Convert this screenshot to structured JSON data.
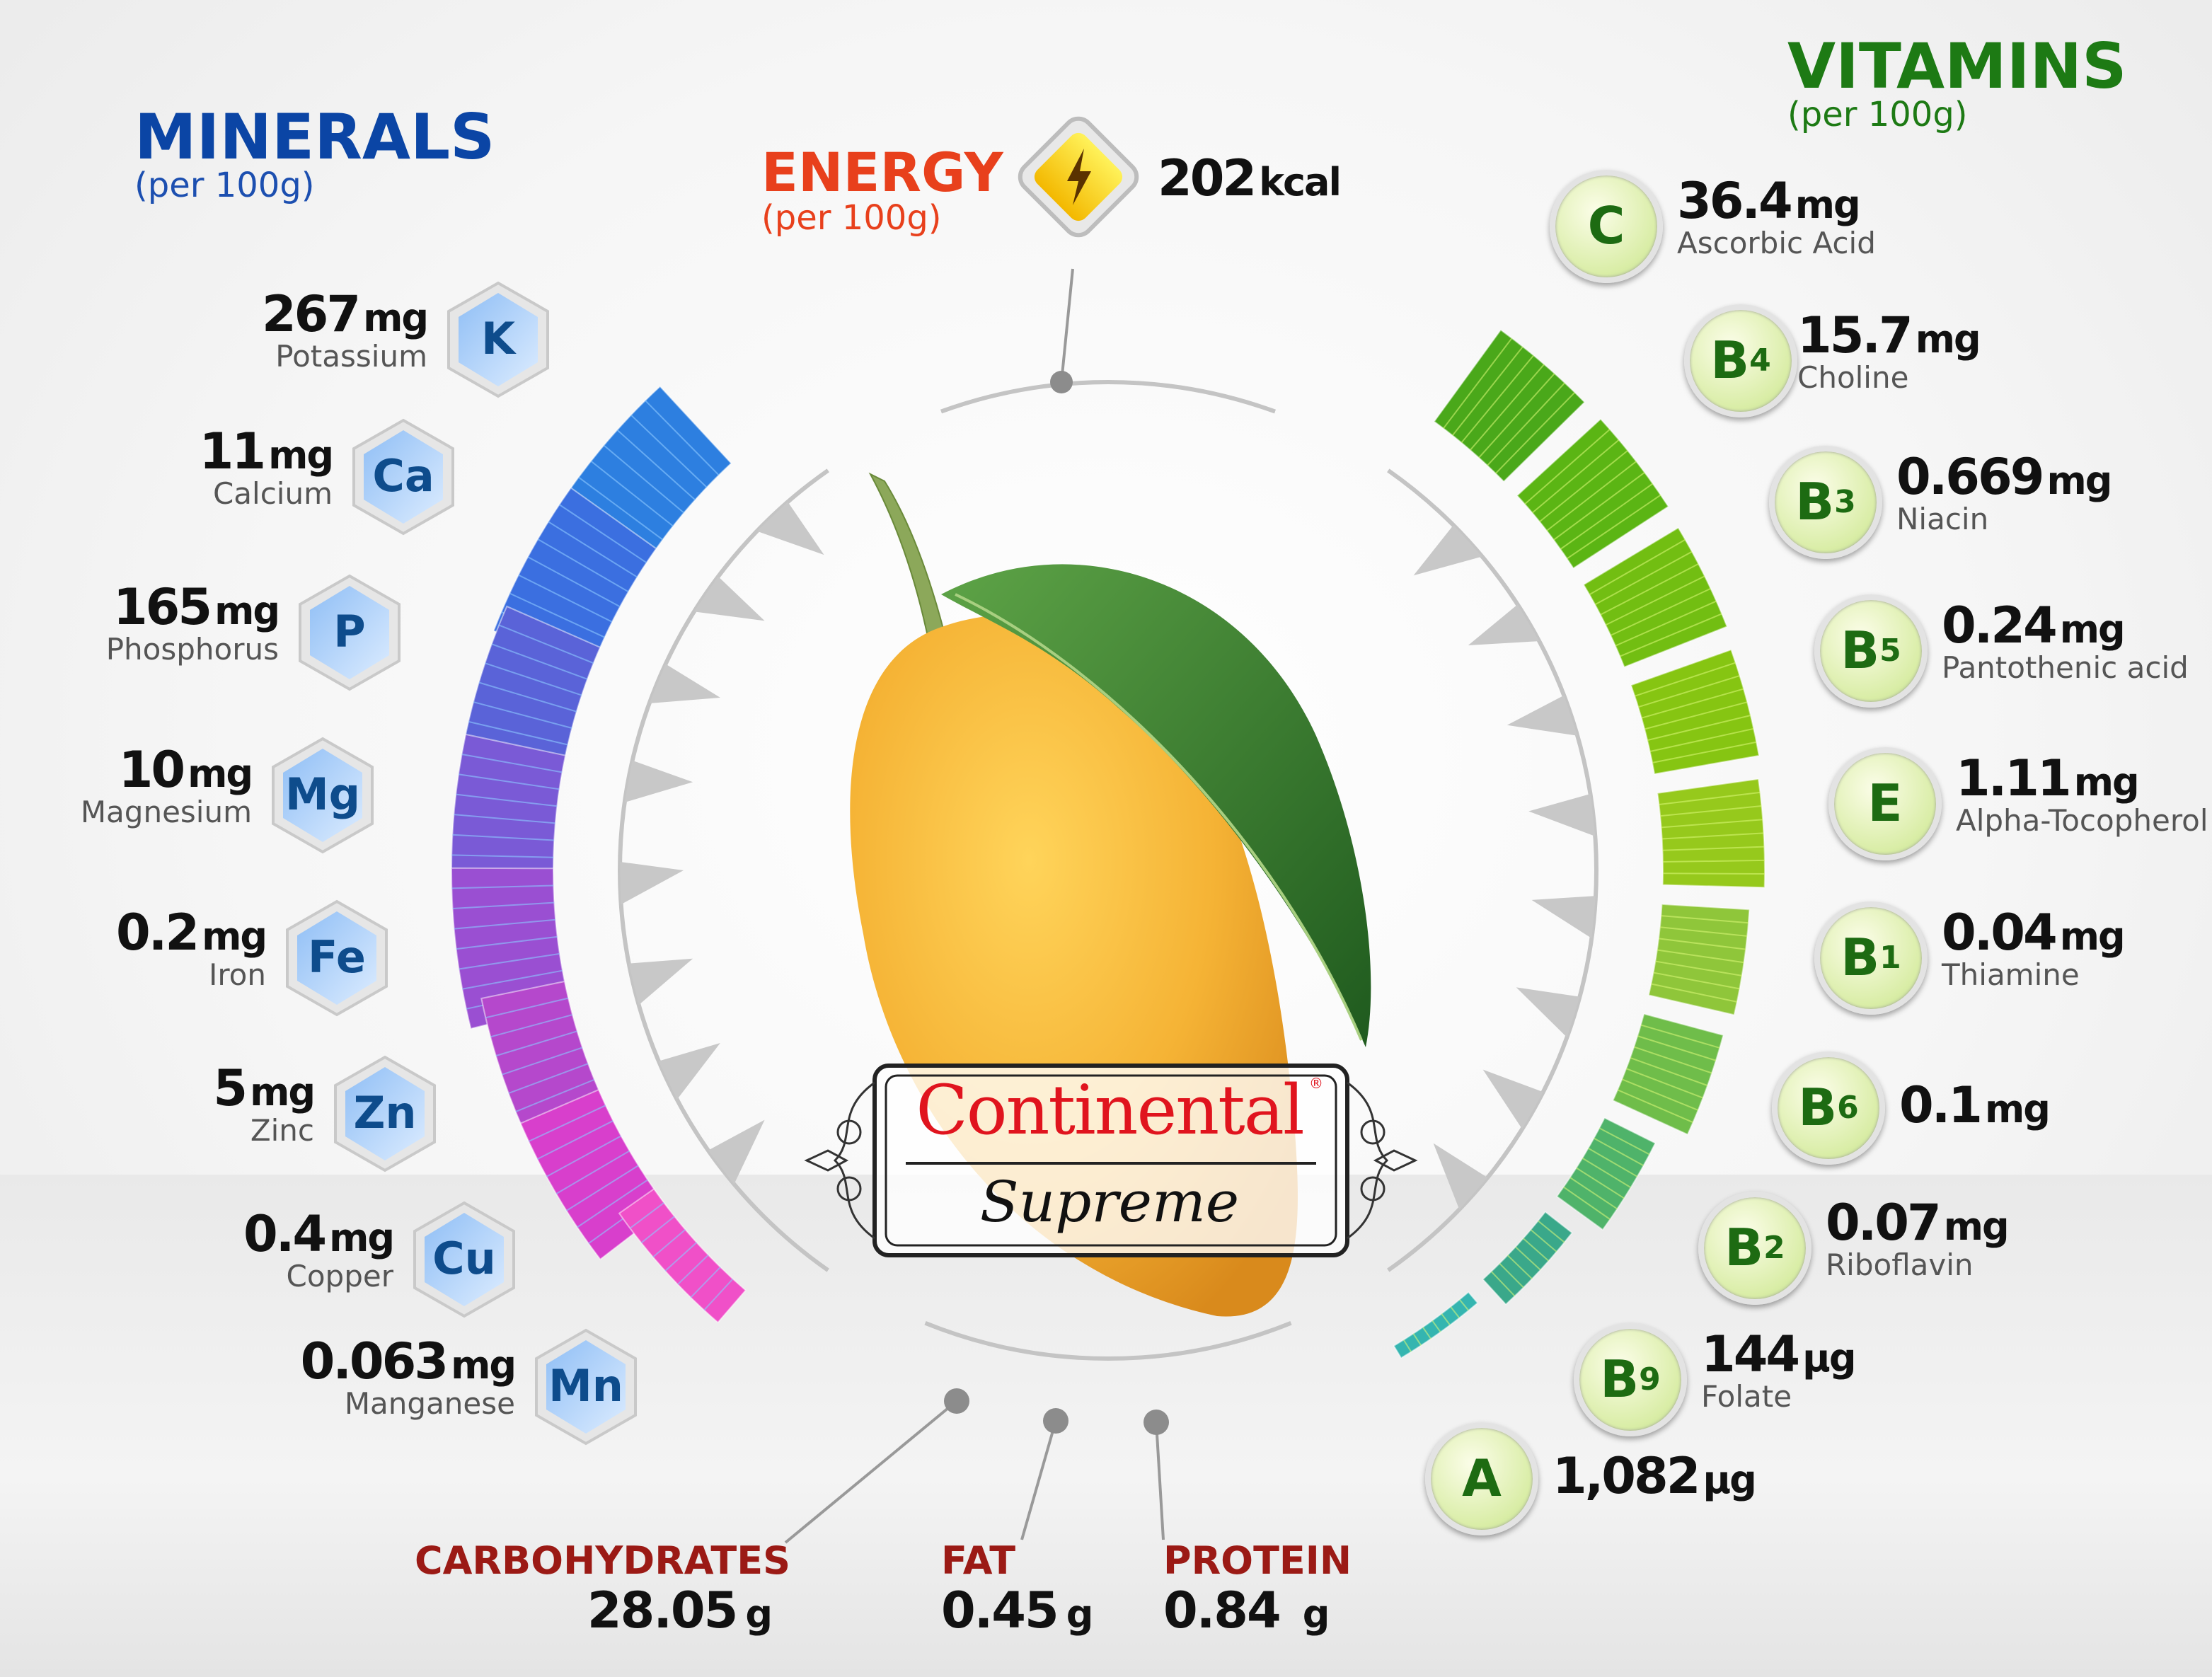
{
  "minerals": {
    "title": "MINERALS",
    "subtitle": "(per 100g)",
    "color": "#0b45a5",
    "items": [
      {
        "symbol": "K",
        "value": "267",
        "unit": "mg",
        "name": "Potassium"
      },
      {
        "symbol": "Ca",
        "value": "11",
        "unit": "mg",
        "name": "Calcium"
      },
      {
        "symbol": "P",
        "value": "165",
        "unit": "mg",
        "name": "Phosphorus"
      },
      {
        "symbol": "Mg",
        "value": "10",
        "unit": "mg",
        "name": "Magnesium"
      },
      {
        "symbol": "Fe",
        "value": "0.2",
        "unit": "mg",
        "name": "Iron"
      },
      {
        "symbol": "Zn",
        "value": "5",
        "unit": "mg",
        "name": "Zinc"
      },
      {
        "symbol": "Cu",
        "value": "0.4",
        "unit": "mg",
        "name": "Copper"
      },
      {
        "symbol": "Mn",
        "value": "0.063",
        "unit": "mg",
        "name": "Manganese"
      }
    ],
    "bar_colors": [
      "#2d7fe0",
      "#3b6fe0",
      "#5a63d8",
      "#7a5ad6",
      "#9a4fd2",
      "#b548cc",
      "#d83fcc",
      "#f050c8"
    ]
  },
  "vitamins": {
    "title": "VITAMINS",
    "subtitle": "(per 100g)",
    "color": "#1d7a14",
    "items": [
      {
        "letter": "C",
        "sub": "",
        "value": "36.4",
        "unit": "mg",
        "name": "Ascorbic Acid"
      },
      {
        "letter": "B",
        "sub": "4",
        "value": "15.7",
        "unit": "mg",
        "name": "Choline"
      },
      {
        "letter": "B",
        "sub": "3",
        "value": "0.669",
        "unit": "mg",
        "name": "Niacin"
      },
      {
        "letter": "B",
        "sub": "5",
        "value": "0.24",
        "unit": "mg",
        "name": "Pantothenic acid"
      },
      {
        "letter": "E",
        "sub": "",
        "value": "1.11",
        "unit": "mg",
        "name": "Alpha-Tocopherol"
      },
      {
        "letter": "B",
        "sub": "1",
        "value": "0.04",
        "unit": "mg",
        "name": "Thiamine"
      },
      {
        "letter": "B",
        "sub": "6",
        "value": "0.1",
        "unit": "mg",
        "name": ""
      },
      {
        "letter": "B",
        "sub": "2",
        "value": "0.07",
        "unit": "mg",
        "name": "Riboflavin"
      },
      {
        "letter": "B",
        "sub": "9",
        "value": "144",
        "unit": "µg",
        "name": "Folate"
      },
      {
        "letter": "A",
        "sub": "",
        "value": "1,082",
        "unit": "µg",
        "name": ""
      }
    ],
    "bar_colors": [
      "#4aa81a",
      "#5bb514",
      "#72be12",
      "#86c512",
      "#96c91c",
      "#8fc63a",
      "#6fbd4a",
      "#4fb36a",
      "#3aa88a",
      "#35b5b0"
    ]
  },
  "energy": {
    "title": "ENERGY",
    "subtitle": "(per 100g)",
    "value": "202",
    "unit": "kcal",
    "color": "#e8401c",
    "icon": "lightning-bolt-icon"
  },
  "macros": [
    {
      "name": "CARBOHYDRATES",
      "value": "28.05",
      "unit": "g"
    },
    {
      "name": "FAT",
      "value": "0.45",
      "unit": "g"
    },
    {
      "name": "PROTEIN",
      "value": "0.84",
      "unit": "g"
    }
  ],
  "logo": {
    "line1": "Continental",
    "line2": "Supreme",
    "mark": "®"
  }
}
